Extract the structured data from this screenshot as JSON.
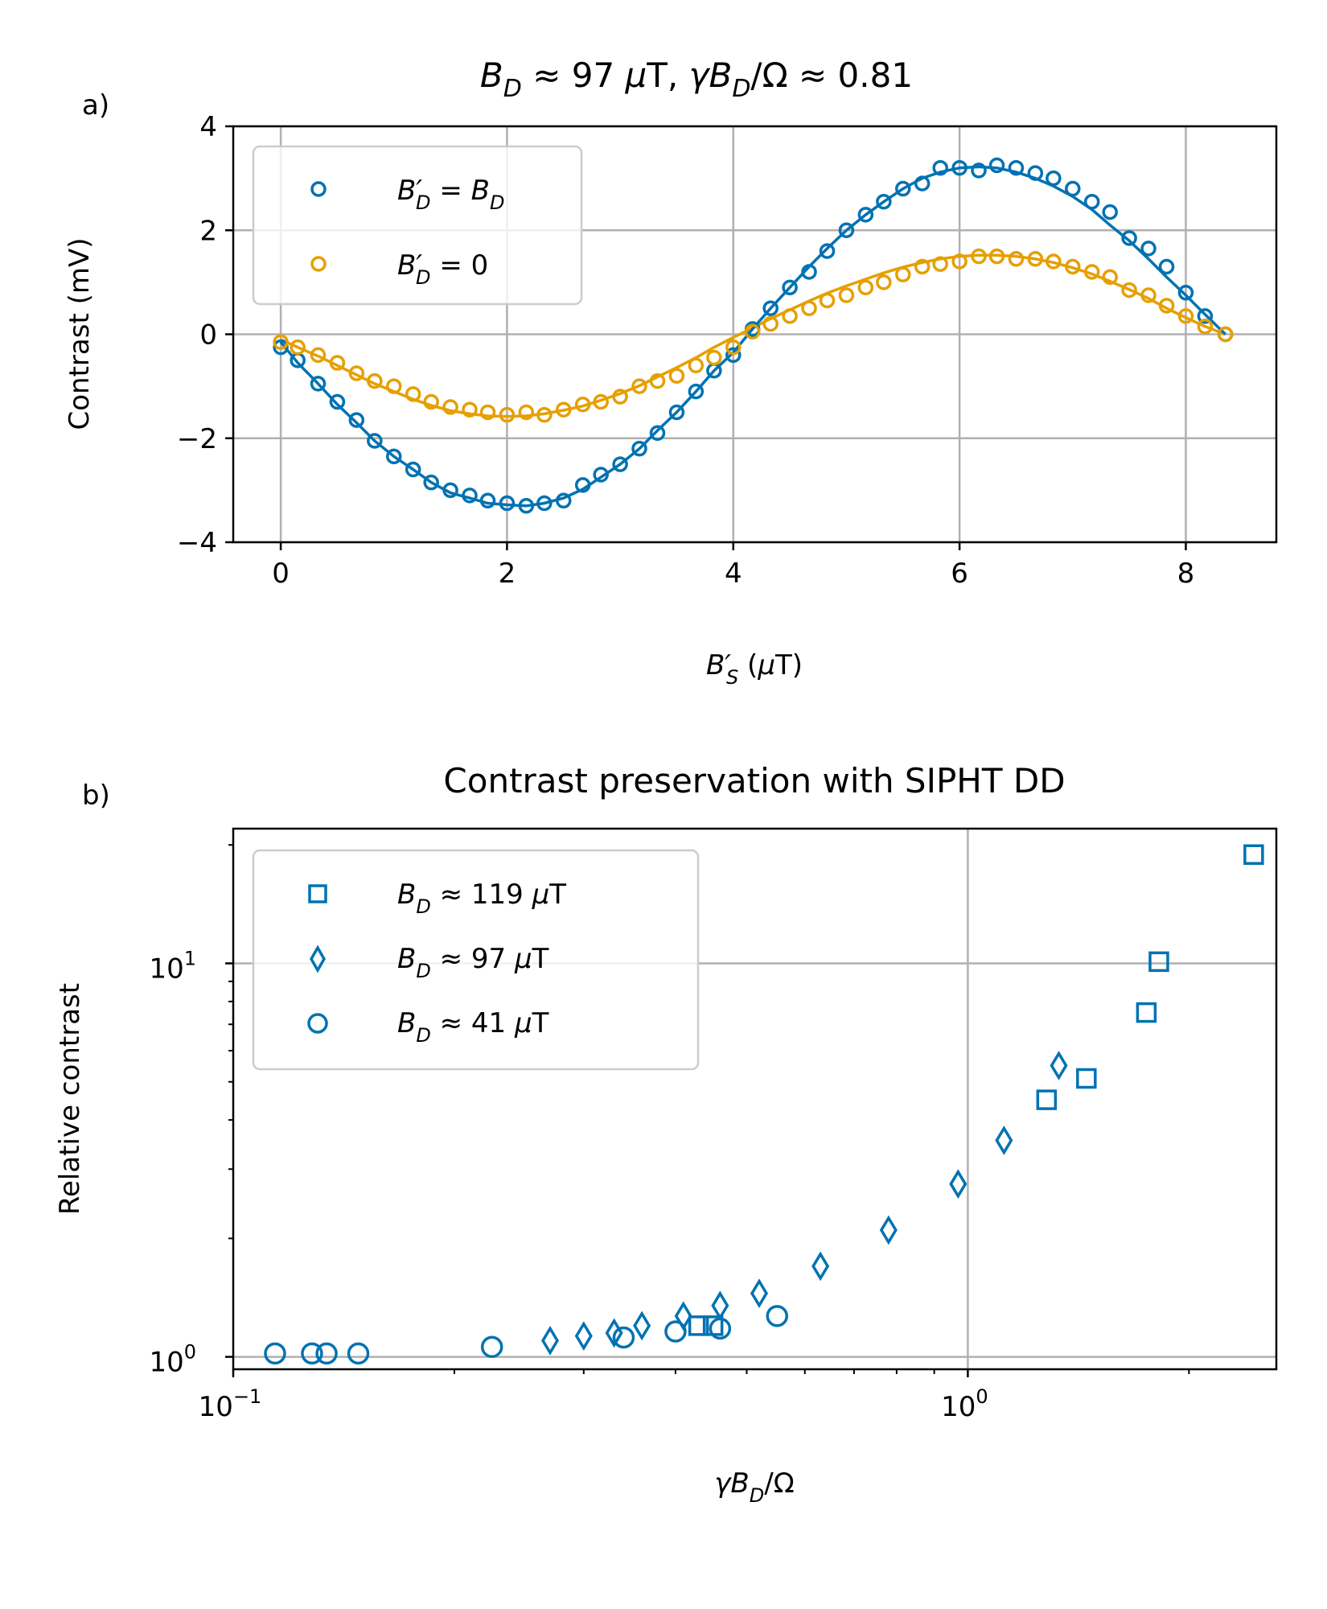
{
  "chart_data": [
    {
      "panel_label": "a)",
      "type": "scatter",
      "title": {
        "t1": "B",
        "t1sub": "D",
        "t2": " ≈  97 ",
        "t3": "μ",
        "t4": "T, ",
        "t5": "γB",
        "t5sub": "D",
        "t6": "/Ω ≈  0.81"
      },
      "xlabel": {
        "main": "B′",
        "sub": "S",
        "rest": " (",
        "mu": "μ",
        "unit": "T)"
      },
      "ylabel": "Contrast (mV)",
      "xlim": [
        -0.42,
        8.8
      ],
      "ylim": [
        -4,
        4
      ],
      "xticks": [
        0,
        2,
        4,
        6,
        8
      ],
      "xtick_labels": [
        "0",
        "2",
        "4",
        "6",
        "8"
      ],
      "yticks": [
        -4,
        -2,
        0,
        2,
        4
      ],
      "ytick_labels": [
        "−4",
        "−2",
        "0",
        "2",
        "4"
      ],
      "grid": true,
      "legend": {
        "placement": "upper-left",
        "entries": [
          {
            "main": "B′",
            "sub": "D",
            "rest": " = B",
            "rest_sub": "D"
          },
          {
            "main": "B′",
            "sub": "D",
            "rest": " = 0",
            "rest_sub": ""
          }
        ]
      },
      "series": [
        {
          "name": "B'_D = B_D",
          "color": "#0072b2",
          "marker": "circle",
          "x": [
            0.0,
            0.15,
            0.33,
            0.5,
            0.67,
            0.83,
            1.0,
            1.17,
            1.33,
            1.5,
            1.67,
            1.83,
            2.0,
            2.17,
            2.33,
            2.5,
            2.67,
            2.83,
            3.0,
            3.17,
            3.33,
            3.5,
            3.67,
            3.83,
            4.0,
            4.17,
            4.33,
            4.5,
            4.67,
            4.83,
            5.0,
            5.17,
            5.33,
            5.5,
            5.67,
            5.83,
            6.0,
            6.17,
            6.33,
            6.5,
            6.67,
            6.83,
            7.0,
            7.17,
            7.33,
            7.5,
            7.67,
            7.83,
            8.0,
            8.17,
            8.35
          ],
          "y": [
            -0.25,
            -0.5,
            -0.95,
            -1.3,
            -1.65,
            -2.05,
            -2.35,
            -2.6,
            -2.85,
            -3.0,
            -3.1,
            -3.2,
            -3.25,
            -3.3,
            -3.25,
            -3.2,
            -2.9,
            -2.7,
            -2.5,
            -2.2,
            -1.9,
            -1.5,
            -1.1,
            -0.7,
            -0.4,
            0.1,
            0.5,
            0.9,
            1.2,
            1.6,
            2.0,
            2.3,
            2.55,
            2.8,
            2.9,
            3.2,
            3.2,
            3.15,
            3.25,
            3.2,
            3.1,
            3.0,
            2.8,
            2.55,
            2.35,
            1.85,
            1.65,
            1.3,
            0.8,
            0.35,
            0.0
          ],
          "fit_y": [
            -0.15,
            -0.55,
            -0.95,
            -1.35,
            -1.7,
            -2.05,
            -2.35,
            -2.6,
            -2.85,
            -3.05,
            -3.15,
            -3.25,
            -3.28,
            -3.3,
            -3.25,
            -3.15,
            -2.98,
            -2.75,
            -2.5,
            -2.2,
            -1.85,
            -1.5,
            -1.1,
            -0.7,
            -0.35,
            0.1,
            0.5,
            0.9,
            1.3,
            1.65,
            2.0,
            2.3,
            2.55,
            2.8,
            3.0,
            3.12,
            3.2,
            3.22,
            3.2,
            3.12,
            3.0,
            2.85,
            2.65,
            2.4,
            2.1,
            1.8,
            1.45,
            1.1,
            0.75,
            0.38,
            0.0
          ]
        },
        {
          "name": "B'_D = 0",
          "color": "#e69f00",
          "marker": "circle",
          "x": [
            0.0,
            0.15,
            0.33,
            0.5,
            0.67,
            0.83,
            1.0,
            1.17,
            1.33,
            1.5,
            1.67,
            1.83,
            2.0,
            2.17,
            2.33,
            2.5,
            2.67,
            2.83,
            3.0,
            3.17,
            3.33,
            3.5,
            3.67,
            3.83,
            4.0,
            4.17,
            4.33,
            4.5,
            4.67,
            4.83,
            5.0,
            5.17,
            5.33,
            5.5,
            5.67,
            5.83,
            6.0,
            6.17,
            6.33,
            6.5,
            6.67,
            6.83,
            7.0,
            7.17,
            7.33,
            7.5,
            7.67,
            7.83,
            8.0,
            8.17,
            8.35
          ],
          "y": [
            -0.15,
            -0.25,
            -0.4,
            -0.55,
            -0.75,
            -0.9,
            -1.0,
            -1.15,
            -1.3,
            -1.4,
            -1.45,
            -1.5,
            -1.55,
            -1.5,
            -1.55,
            -1.45,
            -1.35,
            -1.3,
            -1.2,
            -1.0,
            -0.9,
            -0.8,
            -0.6,
            -0.45,
            -0.25,
            0.05,
            0.2,
            0.35,
            0.5,
            0.65,
            0.75,
            0.9,
            1.0,
            1.15,
            1.3,
            1.35,
            1.4,
            1.5,
            1.5,
            1.45,
            1.45,
            1.4,
            1.3,
            1.2,
            1.1,
            0.85,
            0.75,
            0.55,
            0.35,
            0.15,
            0.0
          ],
          "fit_y": [
            -0.1,
            -0.25,
            -0.42,
            -0.6,
            -0.78,
            -0.95,
            -1.1,
            -1.25,
            -1.37,
            -1.47,
            -1.53,
            -1.57,
            -1.58,
            -1.57,
            -1.53,
            -1.46,
            -1.38,
            -1.27,
            -1.14,
            -0.99,
            -0.82,
            -0.64,
            -0.45,
            -0.25,
            -0.06,
            0.12,
            0.3,
            0.47,
            0.64,
            0.79,
            0.93,
            1.06,
            1.18,
            1.29,
            1.38,
            1.45,
            1.5,
            1.52,
            1.52,
            1.5,
            1.45,
            1.38,
            1.28,
            1.16,
            1.02,
            0.86,
            0.69,
            0.5,
            0.32,
            0.15,
            0.0
          ]
        }
      ]
    },
    {
      "panel_label": "b)",
      "type": "scatter",
      "title": "Contrast preservation with SIPHT DD",
      "xlabel": {
        "main": "γB",
        "sub": "D",
        "rest": "/Ω"
      },
      "ylabel": "Relative contrast",
      "xscale": "log",
      "yscale": "log",
      "xlim": [
        0.1,
        2.63
      ],
      "ylim": [
        0.93,
        22
      ],
      "xticks_major": [
        0.1,
        1
      ],
      "xtick_labels": [
        {
          "base": "10",
          "exp": "−1"
        },
        {
          "base": "10",
          "exp": "0"
        }
      ],
      "yticks_major": [
        1,
        10
      ],
      "ytick_labels": [
        {
          "base": "10",
          "exp": "0"
        },
        {
          "base": "10",
          "exp": "1"
        }
      ],
      "grid": true,
      "legend": {
        "placement": "upper-left",
        "entries": [
          {
            "main": "B",
            "sub": "D",
            "rest": " ≈  119 ",
            "mu": "μ",
            "unit": "T"
          },
          {
            "main": "B",
            "sub": "D",
            "rest": " ≈  97 ",
            "mu": "μ",
            "unit": "T"
          },
          {
            "main": "B",
            "sub": "D",
            "rest": " ≈  41 ",
            "mu": "μ",
            "unit": "T"
          }
        ]
      },
      "series": [
        {
          "name": "B_D ≈ 119 μT",
          "color": "#0072b2",
          "marker": "square",
          "x": [
            0.43,
            0.45,
            1.28,
            1.45,
            1.75,
            1.82,
            2.45
          ],
          "y": [
            1.2,
            1.2,
            4.5,
            5.1,
            7.5,
            10.1,
            18.9
          ]
        },
        {
          "name": "B_D ≈ 97 μT",
          "color": "#0072b2",
          "marker": "diamond",
          "x": [
            0.27,
            0.3,
            0.33,
            0.36,
            0.41,
            0.46,
            0.52,
            0.63,
            0.78,
            0.97,
            1.12,
            1.33
          ],
          "y": [
            1.1,
            1.13,
            1.15,
            1.2,
            1.27,
            1.35,
            1.45,
            1.7,
            2.1,
            2.75,
            3.55,
            5.5
          ]
        },
        {
          "name": "B_D ≈ 41 μT",
          "color": "#0072b2",
          "marker": "circle",
          "x": [
            0.114,
            0.128,
            0.134,
            0.148,
            0.225,
            0.34,
            0.4,
            0.46,
            0.55
          ],
          "y": [
            1.02,
            1.02,
            1.02,
            1.02,
            1.06,
            1.12,
            1.16,
            1.18,
            1.27
          ]
        }
      ]
    }
  ]
}
